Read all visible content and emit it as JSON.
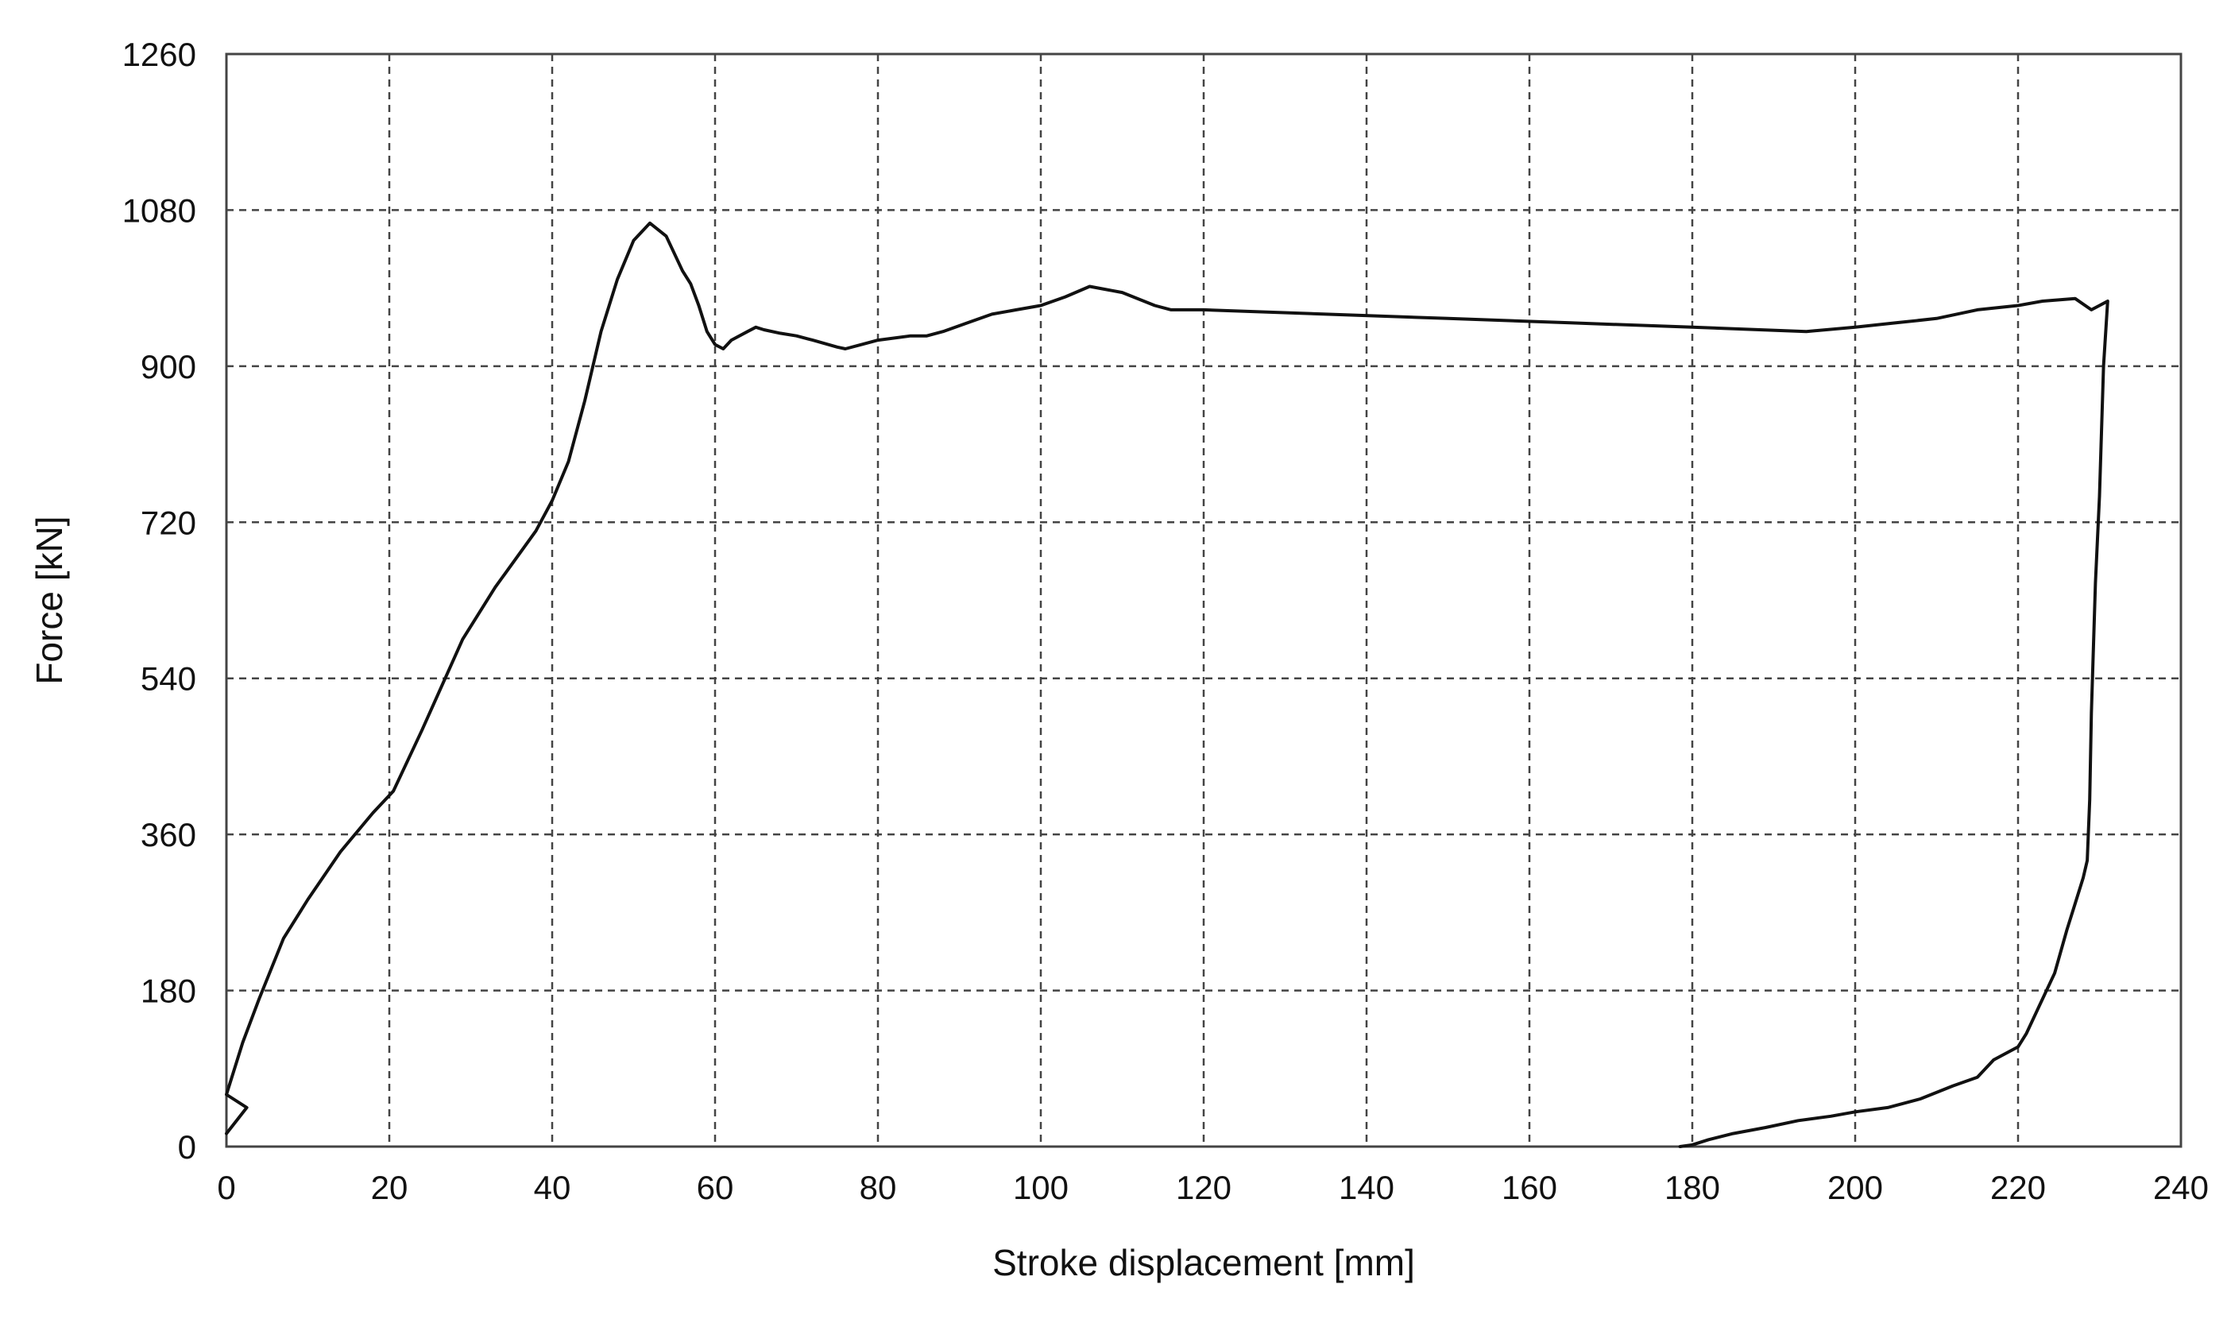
{
  "chart_data": {
    "type": "line",
    "title": "",
    "xlabel": "Stroke displacement [mm]",
    "ylabel": "Force [kN]",
    "xlim": [
      0,
      240
    ],
    "ylim": [
      0,
      1260
    ],
    "xticks": [
      0,
      20,
      40,
      60,
      80,
      100,
      120,
      140,
      160,
      180,
      200,
      220,
      240
    ],
    "yticks": [
      0,
      180,
      360,
      540,
      720,
      900,
      1080,
      1260
    ],
    "grid": true,
    "legend": "none",
    "colors": {
      "line": "#111111",
      "grid": "#444444",
      "frame": "#444444"
    },
    "series": [
      {
        "x": [
          0,
          2.5,
          0,
          2,
          4,
          7,
          10,
          14,
          18,
          20.5,
          24,
          29,
          33,
          38,
          40,
          42,
          44,
          46,
          48,
          50,
          52,
          54,
          56,
          57,
          58,
          59,
          60,
          61,
          62,
          64,
          65,
          66,
          68,
          70,
          72,
          75,
          76,
          78,
          80,
          84,
          86,
          88,
          91,
          94,
          97,
          100,
          103,
          106,
          110,
          114,
          116,
          120,
          135,
          150,
          165,
          180,
          194,
          200,
          205,
          210,
          215,
          220,
          223,
          227,
          229,
          230,
          231,
          230.5,
          230,
          229.5,
          229,
          228.8,
          228.5,
          228,
          227,
          226,
          224.5,
          222.5,
          221,
          220,
          217,
          215,
          212,
          208,
          204,
          200,
          197,
          193,
          189,
          185,
          182,
          180,
          178.5
        ],
        "y": [
          15,
          45,
          60,
          120,
          170,
          240,
          285,
          340,
          385,
          410,
          480,
          585,
          645,
          710,
          745,
          790,
          860,
          940,
          1000,
          1045,
          1065,
          1050,
          1010,
          995,
          970,
          940,
          925,
          920,
          930,
          940,
          945,
          942,
          938,
          935,
          930,
          922,
          920,
          925,
          930,
          935,
          935,
          940,
          950,
          960,
          965,
          970,
          980,
          992,
          985,
          970,
          965,
          965,
          960,
          955,
          950,
          945,
          940,
          945,
          950,
          955,
          965,
          970,
          975,
          978,
          965,
          970,
          975,
          900,
          750,
          650,
          500,
          400,
          330,
          310,
          280,
          250,
          200,
          160,
          130,
          115,
          100,
          80,
          70,
          55,
          45,
          40,
          35,
          30,
          22,
          15,
          8,
          2,
          0
        ]
      }
    ]
  }
}
